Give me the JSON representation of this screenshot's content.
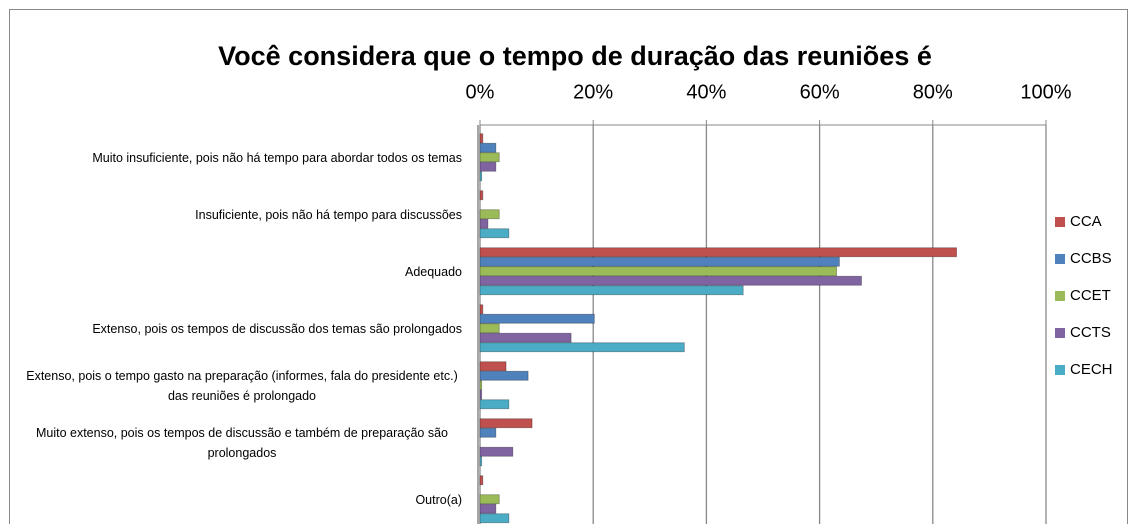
{
  "chart_data": {
    "type": "bar",
    "orientation": "horizontal",
    "title": "Você considera que o tempo de duração das reuniões é",
    "categories": [
      "Muito insuficiente, pois não há tempo para abordar todos os temas",
      "Insuficiente, pois não há tempo para discussões",
      "Adequado",
      "Extenso, pois os tempos de discussão dos temas são prolongados",
      "Extenso, pois o tempo gasto na preparação (informes, fala do presidente etc.) das reuniões é prolongado",
      "Muito extenso, pois os tempos de discussão e também de preparação são prolongados",
      "Outro(a)"
    ],
    "series": [
      {
        "name": "CCA",
        "color": "#c0504d",
        "values": [
          0.5,
          0.5,
          84.2,
          0.5,
          4.6,
          9.2,
          0.5
        ]
      },
      {
        "name": "CCBS",
        "color": "#4f81bd",
        "values": [
          2.8,
          0,
          63.5,
          20.2,
          8.5,
          2.8,
          0
        ]
      },
      {
        "name": "CCET",
        "color": "#9bbb59",
        "values": [
          3.4,
          3.4,
          63,
          3.4,
          0.3,
          0,
          3.4
        ]
      },
      {
        "name": "CCTS",
        "color": "#8064a2",
        "values": [
          2.8,
          1.4,
          67.4,
          16.1,
          0.3,
          5.8,
          2.8
        ]
      },
      {
        "name": "CECH",
        "color": "#4bacc6",
        "values": [
          0.3,
          5.1,
          46.5,
          36.1,
          5.1,
          0.3,
          5.1
        ]
      }
    ],
    "xlim": [
      0,
      100
    ],
    "xticks": [
      {
        "value": 0,
        "label": "0%"
      },
      {
        "value": 20,
        "label": "20%"
      },
      {
        "value": 40,
        "label": "40%"
      },
      {
        "value": 60,
        "label": "60%"
      },
      {
        "value": 80,
        "label": "80%"
      },
      {
        "value": 100,
        "label": "100%"
      }
    ],
    "grid": true,
    "legend": "right"
  }
}
